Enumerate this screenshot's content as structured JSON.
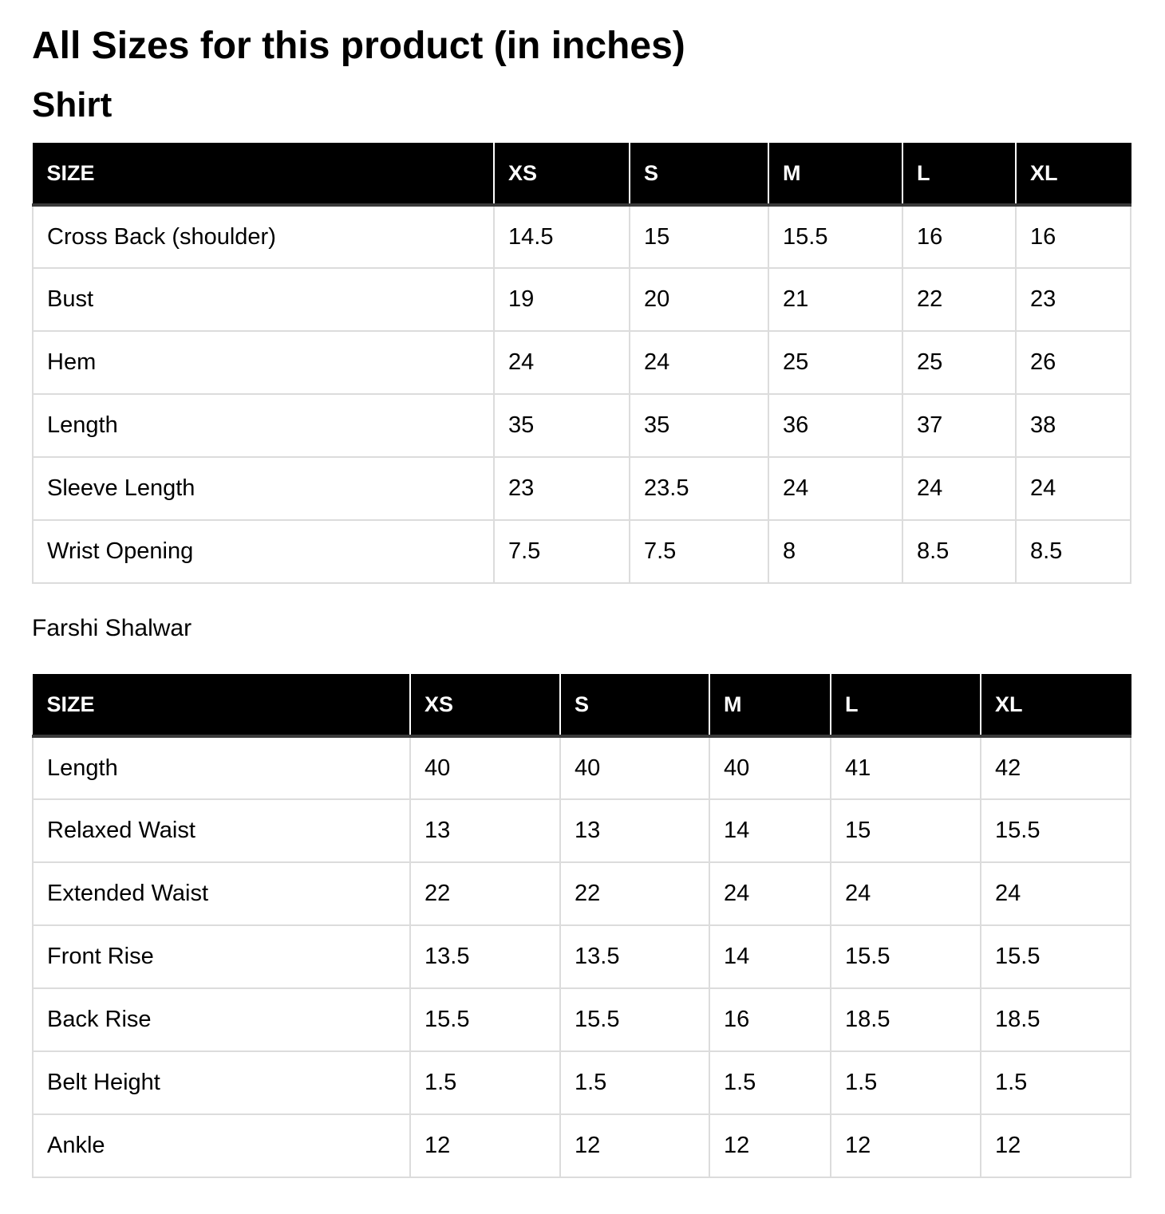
{
  "page_title": "All Sizes for this product (in inches)",
  "shirt": {
    "title": "Shirt",
    "columns": [
      "SIZE",
      "XS",
      "S",
      "M",
      "L",
      "XL"
    ],
    "rows": [
      [
        "Cross Back (shoulder)",
        "14.5",
        "15",
        "15.5",
        "16",
        "16"
      ],
      [
        "Bust",
        "19",
        "20",
        "21",
        "22",
        "23"
      ],
      [
        "Hem",
        "24",
        "24",
        "25",
        "25",
        "26"
      ],
      [
        "Length",
        "35",
        "35",
        "36",
        "37",
        "38"
      ],
      [
        "Sleeve Length",
        "23",
        "23.5",
        "24",
        "24",
        "24"
      ],
      [
        "Wrist Opening",
        "7.5",
        "7.5",
        "8",
        "8.5",
        "8.5"
      ]
    ]
  },
  "shalwar": {
    "title": "Farshi Shalwar",
    "columns": [
      "SIZE",
      "XS",
      "S",
      "M",
      "L",
      "XL"
    ],
    "rows": [
      [
        "Length",
        "40",
        "40",
        "40",
        "41",
        "42"
      ],
      [
        "Relaxed Waist",
        "13",
        "13",
        "14",
        "15",
        "15.5"
      ],
      [
        "Extended Waist",
        "22",
        "22",
        "24",
        "24",
        "24"
      ],
      [
        "Front Rise",
        "13.5",
        "13.5",
        "14",
        "15.5",
        "15.5"
      ],
      [
        "Back Rise",
        "15.5",
        "15.5",
        "16",
        "18.5",
        "18.5"
      ],
      [
        "Belt Height",
        "1.5",
        "1.5",
        "1.5",
        "1.5",
        "1.5"
      ],
      [
        "Ankle",
        "12",
        "12",
        "12",
        "12",
        "12"
      ]
    ]
  }
}
